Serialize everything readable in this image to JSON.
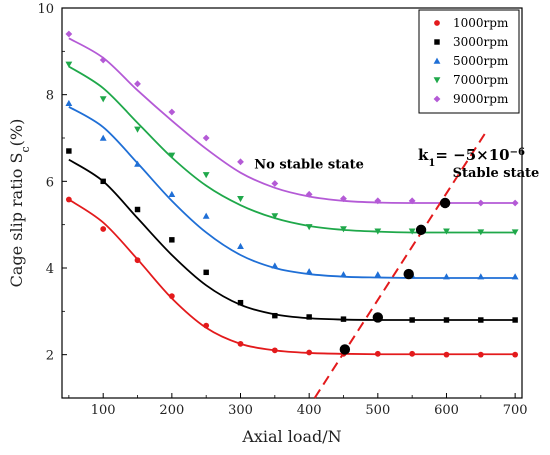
{
  "chart_data": {
    "type": "scatter",
    "xlabel": "Axial load/N",
    "ylabel_main": "Cage slip ratio S",
    "ylabel_sub": "c",
    "ylabel_unit": "(%)",
    "xlim": [
      40,
      710
    ],
    "ylim": [
      1.0,
      10.0
    ],
    "xticks": [
      "100",
      "200",
      "300",
      "400",
      "500",
      "600",
      "700"
    ],
    "yticks": [
      "2",
      "4",
      "6",
      "8",
      "10"
    ],
    "legend_position": "top-right",
    "series": [
      {
        "name": "1000rpm",
        "color": "#e31a1c",
        "marker": "circle",
        "x": [
          50,
          100,
          150,
          200,
          250,
          300,
          350,
          400,
          450,
          500,
          550,
          600,
          650,
          700
        ],
        "points": [
          5.58,
          4.9,
          4.18,
          3.35,
          2.67,
          2.25,
          2.1,
          2.05,
          2.02,
          2.02,
          2.02,
          2.0,
          2.0,
          2.0
        ],
        "fit": [
          5.58,
          5.05,
          4.2,
          3.3,
          2.62,
          2.25,
          2.1,
          2.04,
          2.02,
          2.01,
          2.01,
          2.01,
          2.01,
          2.01
        ]
      },
      {
        "name": "3000rpm",
        "color": "#000000",
        "marker": "square",
        "x": [
          50,
          100,
          150,
          200,
          250,
          300,
          350,
          400,
          450,
          500,
          550,
          600,
          650,
          700
        ],
        "points": [
          6.7,
          6.0,
          5.35,
          4.65,
          3.9,
          3.2,
          2.9,
          2.87,
          2.82,
          2.82,
          2.8,
          2.8,
          2.8,
          2.8
        ],
        "fit": [
          6.5,
          6.0,
          5.15,
          4.3,
          3.6,
          3.15,
          2.93,
          2.84,
          2.81,
          2.8,
          2.8,
          2.8,
          2.8,
          2.8
        ]
      },
      {
        "name": "5000rpm",
        "color": "#1f6fd6",
        "marker": "triangle-up",
        "x": [
          50,
          100,
          150,
          200,
          250,
          300,
          350,
          400,
          450,
          500,
          550,
          600,
          650,
          700
        ],
        "points": [
          7.8,
          7.0,
          6.4,
          5.7,
          5.2,
          4.5,
          4.05,
          3.92,
          3.85,
          3.85,
          3.82,
          3.8,
          3.8,
          3.8
        ],
        "fit": [
          7.72,
          7.25,
          6.42,
          5.55,
          4.82,
          4.3,
          4.0,
          3.86,
          3.8,
          3.78,
          3.77,
          3.77,
          3.77,
          3.77
        ]
      },
      {
        "name": "7000rpm",
        "color": "#1fa84a",
        "marker": "triangle-down",
        "x": [
          50,
          100,
          150,
          200,
          250,
          300,
          350,
          400,
          450,
          500,
          550,
          600,
          650,
          700
        ],
        "points": [
          8.7,
          7.9,
          7.2,
          6.6,
          6.15,
          5.6,
          5.2,
          4.95,
          4.9,
          4.85,
          4.85,
          4.85,
          4.83,
          4.83
        ],
        "fit": [
          8.65,
          8.15,
          7.35,
          6.55,
          5.9,
          5.45,
          5.15,
          4.97,
          4.88,
          4.84,
          4.82,
          4.82,
          4.82,
          4.82
        ]
      },
      {
        "name": "9000rpm",
        "color": "#b45ad6",
        "marker": "diamond",
        "x": [
          50,
          100,
          150,
          200,
          250,
          300,
          350,
          400,
          450,
          500,
          550,
          600,
          650,
          700
        ],
        "points": [
          9.4,
          8.8,
          8.25,
          7.6,
          7.0,
          6.45,
          5.95,
          5.7,
          5.6,
          5.55,
          5.55,
          5.5,
          5.5,
          5.5
        ],
        "fit": [
          9.3,
          8.85,
          8.1,
          7.4,
          6.75,
          6.2,
          5.85,
          5.65,
          5.55,
          5.51,
          5.5,
          5.5,
          5.5,
          5.5
        ]
      }
    ],
    "boundary_line": {
      "color": "#e31a1c",
      "label_main": "k",
      "label_sub": "1",
      "label_rest": "= −5×10",
      "label_exp": "−6",
      "x": [
        408,
        660
      ],
      "y": [
        1.0,
        7.2
      ]
    },
    "boundary_points": {
      "color": "#000000",
      "x": [
        452,
        500,
        545,
        563,
        598
      ],
      "y": [
        2.12,
        2.86,
        3.86,
        4.88,
        5.5
      ]
    },
    "annotations": [
      {
        "text": "No stable state",
        "x": 320,
        "y": 6.3
      },
      {
        "text": "Stable state",
        "x": 609,
        "y": 6.1
      }
    ]
  }
}
